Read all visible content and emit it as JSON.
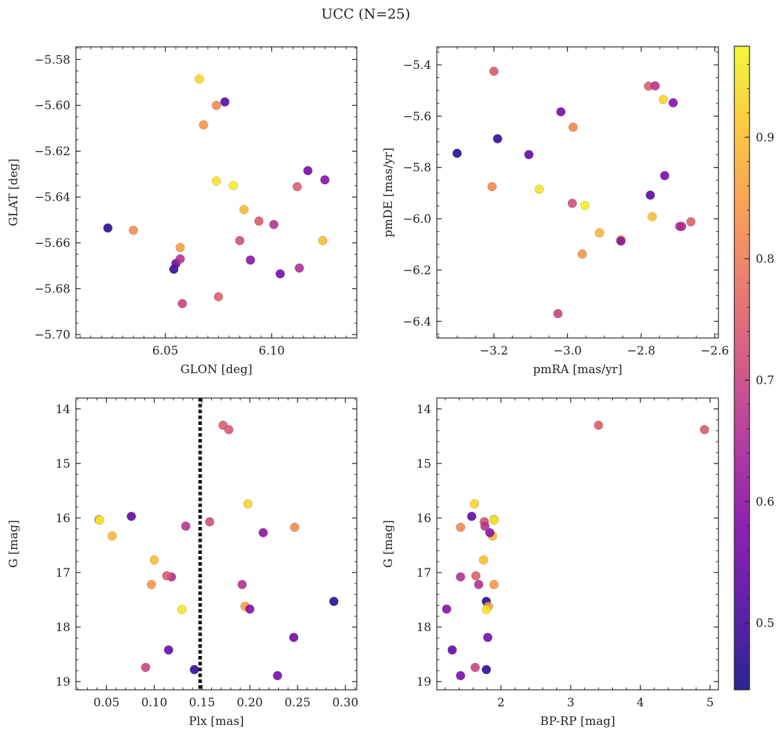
{
  "chart_data": {
    "title": "UCC (N=25)",
    "colorbar": {
      "colormap": "plasma",
      "range": [
        0.445,
        0.975
      ],
      "ticks": [
        0.5,
        0.6,
        0.7,
        0.8,
        0.9
      ],
      "tick_labels": [
        "0.5",
        "0.6",
        "0.7",
        "0.8",
        "0.9"
      ]
    },
    "stars": [
      {
        "glon": 6.023,
        "glat": -5.6535,
        "pmra": -3.3,
        "pmde": -5.745,
        "plx": 0.288,
        "g": 17.53,
        "bprp": 1.79,
        "c": 0.47
      },
      {
        "glon": 6.054,
        "glat": -5.6715,
        "pmra": -3.19,
        "pmde": -5.688,
        "plx": 0.142,
        "g": 18.78,
        "bprp": 1.79,
        "c": 0.48
      },
      {
        "glon": 6.055,
        "glat": -5.669,
        "pmra": -3.105,
        "pmde": -5.75,
        "plx": 0.115,
        "g": 18.42,
        "bprp": 1.3,
        "c": 0.54
      },
      {
        "glon": 6.057,
        "glat": -5.662,
        "pmra": -2.855,
        "pmde": -6.082,
        "plx": 0.195,
        "g": 17.62,
        "bprp": 1.82,
        "c": 0.85
      },
      {
        "glon": 6.057,
        "glat": -5.667,
        "pmra": -2.695,
        "pmde": -6.03,
        "plx": 0.118,
        "g": 17.08,
        "bprp": 1.42,
        "c": 0.66
      },
      {
        "glon": 6.058,
        "glat": -5.6865,
        "pmra": -3.026,
        "pmde": -6.37,
        "plx": 0.091,
        "g": 18.74,
        "bprp": 1.63,
        "c": 0.7
      },
      {
        "glon": 6.066,
        "glat": -5.5885,
        "pmra": -2.74,
        "pmde": -5.535,
        "plx": 0.198,
        "g": 15.74,
        "bprp": 1.62,
        "c": 0.93
      },
      {
        "glon": 6.068,
        "glat": -5.6085,
        "pmra": -2.96,
        "pmde": -6.138,
        "plx": 0.097,
        "g": 17.22,
        "bprp": 1.9,
        "c": 0.84
      },
      {
        "glon": 6.074,
        "glat": -5.6,
        "pmra": -2.985,
        "pmde": -5.643,
        "plx": 0.042,
        "g": 16.03,
        "bprp": 1.9,
        "c": 0.82
      },
      {
        "glon": 6.074,
        "glat": -5.633,
        "pmra": -3.077,
        "pmde": -5.885,
        "plx": 0.129,
        "g": 17.68,
        "bprp": 1.79,
        "c": 0.95
      },
      {
        "glon": 6.075,
        "glat": -5.6835,
        "pmra": -2.78,
        "pmde": -5.483,
        "plx": 0.172,
        "g": 14.3,
        "bprp": 3.4,
        "c": 0.75
      },
      {
        "glon": 6.078,
        "glat": -5.5985,
        "pmra": -2.775,
        "pmde": -5.908,
        "plx": 0.076,
        "g": 15.97,
        "bprp": 1.58,
        "c": 0.53
      },
      {
        "glon": 6.082,
        "glat": -5.635,
        "pmra": -2.953,
        "pmde": -5.948,
        "plx": 0.043,
        "g": 16.04,
        "bprp": 1.9,
        "c": 0.96
      },
      {
        "glon": 6.085,
        "glat": -5.659,
        "pmra": -2.987,
        "pmde": -5.94,
        "plx": 0.158,
        "g": 16.07,
        "bprp": 1.76,
        "c": 0.72
      },
      {
        "glon": 6.087,
        "glat": -5.6455,
        "pmra": -2.913,
        "pmde": -6.055,
        "plx": 0.056,
        "g": 16.33,
        "bprp": 1.88,
        "c": 0.89
      },
      {
        "glon": 6.09,
        "glat": -5.6675,
        "pmra": -2.855,
        "pmde": -6.087,
        "plx": 0.214,
        "g": 16.27,
        "bprp": 1.84,
        "c": 0.6
      },
      {
        "glon": 6.094,
        "glat": -5.6505,
        "pmra": -3.2,
        "pmde": -5.425,
        "plx": 0.178,
        "g": 14.38,
        "bprp": 4.92,
        "c": 0.74
      },
      {
        "glon": 6.101,
        "glat": -5.652,
        "pmra": -2.762,
        "pmde": -5.482,
        "plx": 0.133,
        "g": 16.15,
        "bprp": 1.77,
        "c": 0.67
      },
      {
        "glon": 6.104,
        "glat": -5.6735,
        "pmra": -3.018,
        "pmde": -5.583,
        "plx": 0.229,
        "g": 18.89,
        "bprp": 1.42,
        "c": 0.57
      },
      {
        "glon": 6.112,
        "glat": -5.6355,
        "pmra": -2.665,
        "pmde": -6.012,
        "plx": 0.113,
        "g": 17.06,
        "bprp": 1.64,
        "c": 0.75
      },
      {
        "glon": 6.113,
        "glat": -5.671,
        "pmra": -2.69,
        "pmde": -6.03,
        "plx": 0.192,
        "g": 17.22,
        "bprp": 1.68,
        "c": 0.66
      },
      {
        "glon": 6.117,
        "glat": -5.6285,
        "pmra": -2.736,
        "pmde": -5.832,
        "plx": 0.246,
        "g": 18.19,
        "bprp": 1.81,
        "c": 0.57
      },
      {
        "glon": 6.124,
        "glat": -5.659,
        "pmra": -2.77,
        "pmde": -5.992,
        "plx": 0.1,
        "g": 16.77,
        "bprp": 1.75,
        "c": 0.9
      },
      {
        "glon": 6.125,
        "glat": -5.6325,
        "pmra": -2.713,
        "pmde": -5.548,
        "plx": 0.2,
        "g": 17.67,
        "bprp": 1.22,
        "c": 0.59
      },
      {
        "glon": 6.035,
        "glat": -5.6545,
        "pmra": -3.205,
        "pmde": -5.875,
        "plx": 0.247,
        "g": 16.17,
        "bprp": 1.42,
        "c": 0.82
      }
    ],
    "panels": [
      {
        "id": "glon-glat",
        "xkey": "glon",
        "ykey": "glat",
        "xlabel": "GLON [deg]",
        "ylabel": "GLAT [deg]",
        "xlim": [
          6.008,
          6.14
        ],
        "ylim": [
          -5.7015,
          -5.5745
        ],
        "y_inverted": false,
        "xticks": [
          6.05,
          6.1
        ],
        "xtick_labels": [
          "6.05",
          "6.10"
        ],
        "yticks": [
          -5.7,
          -5.68,
          -5.66,
          -5.64,
          -5.62,
          -5.6,
          -5.58
        ],
        "ytick_labels": [
          "−5.70",
          "−5.68",
          "−5.66",
          "−5.64",
          "−5.62",
          "−5.60",
          "−5.58"
        ],
        "xminor": 0.005,
        "yminor": 0.005
      },
      {
        "id": "pmra-pmde",
        "xkey": "pmra",
        "ykey": "pmde",
        "xlabel": "pmRA [mas/yr]",
        "ylabel": "pmDE [mas/yr]",
        "xlim": [
          -3.355,
          -2.59
        ],
        "ylim": [
          -6.465,
          -5.33
        ],
        "y_inverted": false,
        "xticks": [
          -3.2,
          -3.0,
          -2.8,
          -2.6
        ],
        "xtick_labels": [
          "−3.2",
          "−3.0",
          "−2.8",
          "−2.6"
        ],
        "yticks": [
          -6.4,
          -6.2,
          -6.0,
          -5.8,
          -5.6,
          -5.4
        ],
        "ytick_labels": [
          "−6.4",
          "−6.2",
          "−6.0",
          "−5.8",
          "−5.6",
          "−5.4"
        ],
        "xminor": 0.05,
        "yminor": 0.05
      },
      {
        "id": "plx-g",
        "xkey": "plx",
        "ykey": "g",
        "xlabel": "Plx [mas]",
        "ylabel": "G [mag]",
        "xlim": [
          0.018,
          0.312
        ],
        "ylim": [
          13.8,
          19.15
        ],
        "y_inverted": true,
        "xticks": [
          0.05,
          0.1,
          0.15,
          0.2,
          0.25,
          0.3
        ],
        "xtick_labels": [
          "0.05",
          "0.10",
          "0.15",
          "0.20",
          "0.25",
          "0.30"
        ],
        "yticks": [
          14,
          15,
          16,
          17,
          18,
          19
        ],
        "ytick_labels": [
          "14",
          "15",
          "16",
          "17",
          "18",
          "19"
        ],
        "xminor": 0.01,
        "yminor": 0.2,
        "vline": 0.148
      },
      {
        "id": "bprp-g",
        "xkey": "bprp",
        "ykey": "g",
        "xlabel": "BP-RP [mag]",
        "ylabel": "G [mag]",
        "xlim": [
          1.08,
          5.12
        ],
        "ylim": [
          13.8,
          19.15
        ],
        "y_inverted": true,
        "xticks": [
          2,
          3,
          4,
          5
        ],
        "xtick_labels": [
          "2",
          "3",
          "4",
          "5"
        ],
        "yticks": [
          14,
          15,
          16,
          17,
          18,
          19
        ],
        "ytick_labels": [
          "14",
          "15",
          "16",
          "17",
          "18",
          "19"
        ],
        "xminor": 0.2,
        "yminor": 0.2
      }
    ]
  }
}
